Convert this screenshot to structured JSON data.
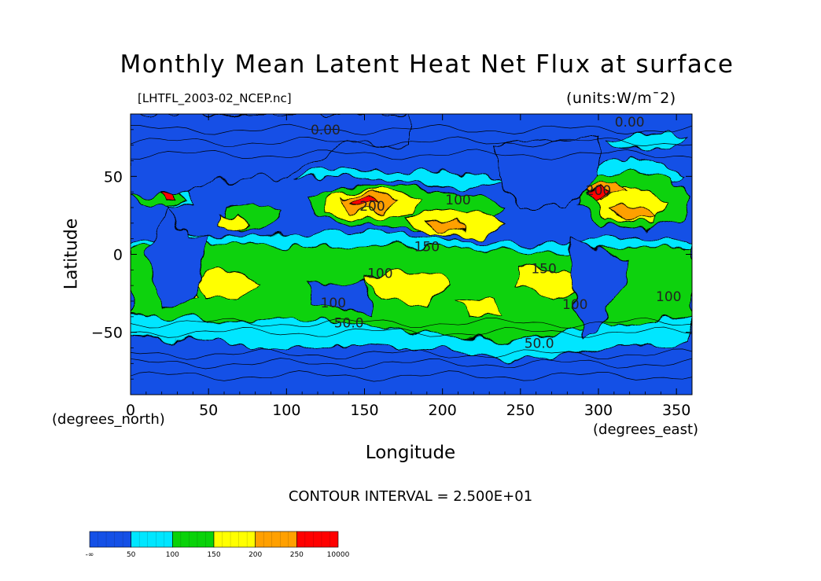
{
  "chart_data": {
    "type": "heatmap",
    "title": "Monthly Mean Latent Heat Net Flux at surface",
    "source_label": "[LHTFL_2003-02_NCEP.nc]",
    "units_label": "(units:W/m¯2)",
    "xlabel": "Longitude",
    "ylabel": "Latitude",
    "x_unit_label": "(degrees_east)",
    "y_unit_label": "(degrees_north)",
    "xlim": [
      0,
      360
    ],
    "ylim": [
      -90,
      90
    ],
    "x_ticks": [
      "0",
      "50",
      "100",
      "150",
      "200",
      "250",
      "300",
      "350"
    ],
    "y_ticks": [
      "50",
      "0",
      "−50"
    ],
    "contour_interval_label": "CONTOUR INTERVAL = 2.500E+01",
    "colorbar": {
      "labels": [
        "-∞",
        "50",
        "100",
        "150",
        "200",
        "250",
        "10000"
      ],
      "colors": [
        "#1450e6",
        "#00e6ff",
        "#0ad20a",
        "#ffff00",
        "#ffa000",
        "#ff0000"
      ]
    },
    "contour_labels": [
      {
        "text": "0.00",
        "lon": 125,
        "lat": 77
      },
      {
        "text": "0.00",
        "lon": 320,
        "lat": 82
      },
      {
        "text": "200",
        "lon": 155,
        "lat": 28
      },
      {
        "text": "100",
        "lon": 210,
        "lat": 32
      },
      {
        "text": "150",
        "lon": 190,
        "lat": 2
      },
      {
        "text": "100",
        "lon": 160,
        "lat": -15
      },
      {
        "text": "150",
        "lon": 265,
        "lat": -12
      },
      {
        "text": "100",
        "lon": 130,
        "lat": -34
      },
      {
        "text": "50.0",
        "lon": 140,
        "lat": -47
      },
      {
        "text": "100",
        "lon": 285,
        "lat": -35
      },
      {
        "text": "100",
        "lon": 345,
        "lat": -30
      },
      {
        "text": "50.0",
        "lon": 262,
        "lat": -60
      },
      {
        "text": "200",
        "lon": 300,
        "lat": 38
      }
    ]
  }
}
